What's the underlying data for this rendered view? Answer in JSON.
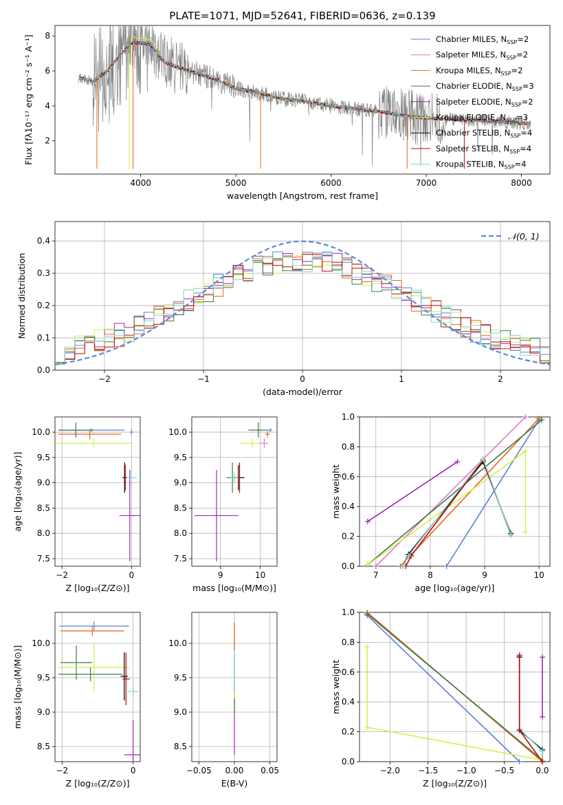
{
  "figure": {
    "title": "PLATE=1071, MJD=52641, FIBERID=0636, z=0.139"
  },
  "colors": {
    "chabrier_miles": "#5b7fd6",
    "salpeter_miles": "#e377c2",
    "kroupa_miles": "#e8641b",
    "chabrier_elodie": "#3c7a45",
    "salpeter_elodie": "#9b27b0",
    "kroupa_elodie": "#d4ef4a",
    "chabrier_stelib": "#000000",
    "salpeter_stelib": "#c00000",
    "kroupa_stelib": "#7fd6d6",
    "data": "#7f7f7f",
    "gaussian": "#5b87d6"
  },
  "chart_data": [
    {
      "id": "spectrum",
      "type": "line",
      "xlabel": "wavelength [Angstrom, rest frame]",
      "ylabel": "Flux [fλ10⁻¹⁷ erg cm⁻² s⁻¹ A⁻¹]",
      "xlim": [
        3100,
        8300
      ],
      "ylim": [
        0.1,
        8.6
      ],
      "xticks": [
        4000,
        5000,
        6000,
        7000,
        8000
      ],
      "yticks": [
        2,
        4,
        6,
        8
      ],
      "legend_position": "top-right",
      "legend": [
        "Chabrier MILES, N_SSP=2",
        "Salpeter MILES, N_SSP=2",
        "Kroupa MILES, N_SSP=2",
        "Chabrier ELODIE, N_SSP=3",
        "Salpeter ELODIE, N_SSP=2",
        "Kroupa ELODIE, N_SSP=3",
        "Chabrier STELIB, N_SSP=4",
        "Salpeter STELIB, N_SSP=4",
        "Kroupa STELIB, N_SSP=4"
      ],
      "continuum": {
        "x": [
          3350,
          3500,
          3650,
          3800,
          3900,
          4000,
          4100,
          4250,
          4500,
          4800,
          5000,
          5200,
          5500,
          5800,
          6000,
          6300,
          6600,
          6800,
          7000,
          7400,
          7800,
          8000,
          8100
        ],
        "y": [
          5.6,
          5.4,
          6.0,
          7.0,
          7.6,
          7.6,
          7.5,
          6.5,
          6.0,
          5.5,
          5.0,
          4.8,
          4.4,
          4.2,
          4.0,
          3.8,
          3.6,
          3.4,
          3.3,
          3.2,
          3.1,
          3.0,
          3.0
        ]
      }
    },
    {
      "id": "residuals",
      "type": "area",
      "xlabel": "(data-model)/error",
      "ylabel": "Normed distribution",
      "xlim": [
        -2.5,
        2.5
      ],
      "ylim": [
        0,
        0.46
      ],
      "xticks": [
        -2,
        -1,
        0,
        1,
        2
      ],
      "yticks": [
        0.0,
        0.1,
        0.2,
        0.3,
        0.4
      ],
      "legend": [
        "𝒩(0, 1)"
      ],
      "legend_position": "top-right",
      "bin_width": 0.1
    },
    {
      "id": "age-vs-z",
      "type": "scatter",
      "xlabel": "Z [log₁₀(Z/Z⊙)]",
      "ylabel": "age  [log₁₀(age/yr)]",
      "xlim": [
        -2.2,
        0.25
      ],
      "ylim": [
        7.35,
        10.3
      ],
      "xticks": [
        -2,
        0
      ],
      "yticks": [
        7.5,
        8.0,
        8.5,
        9.0,
        9.5,
        10.0
      ],
      "points": [
        {
          "s": "chabrier_miles",
          "x": -1.15,
          "y": 10.04,
          "xerr": 0.95,
          "yerr": 0.04
        },
        {
          "s": "kroupa_miles",
          "x": -1.2,
          "y": 9.96,
          "xerr": 0.9,
          "yerr": 0.1
        },
        {
          "s": "chabrier_elodie",
          "x": -1.6,
          "y": 10.04,
          "xerr": 0.5,
          "yerr": 0.15
        },
        {
          "s": "kroupa_elodie",
          "x": -1.1,
          "y": 9.78,
          "xerr": 1.1,
          "yerr": 0.08
        },
        {
          "s": "salpeter_elodie",
          "x": -0.05,
          "y": 8.35,
          "xerr": 0.3,
          "yerr": 0.9
        },
        {
          "s": "chabrier_stelib",
          "x": -0.2,
          "y": 9.1,
          "xerr": 0.06,
          "yerr": 0.3
        },
        {
          "s": "salpeter_stelib",
          "x": -0.18,
          "y": 9.1,
          "xerr": 0.06,
          "yerr": 0.25
        },
        {
          "s": "kroupa_stelib",
          "x": 0.0,
          "y": 9.1,
          "xerr": 0.15,
          "yerr": 0.15
        },
        {
          "s": "chabrier_miles",
          "x": 0.0,
          "y": 10.0,
          "xerr": 0.05,
          "yerr": 0.05
        }
      ]
    },
    {
      "id": "age-vs-mass",
      "type": "scatter",
      "xlabel": "mass [log₁₀(M/M⊙)]",
      "ylabel": "",
      "xlim": [
        8.28,
        10.42
      ],
      "ylim": [
        7.35,
        10.3
      ],
      "xticks": [
        9,
        10
      ],
      "yticks": [
        7.5,
        8.0,
        8.5,
        9.0,
        9.5,
        10.0
      ],
      "points": [
        {
          "s": "salpeter_elodie",
          "x": 8.9,
          "y": 8.35,
          "xerr": 0.55,
          "yerr": 0.9
        },
        {
          "s": "chabrier_elodie",
          "x": 9.3,
          "y": 9.1,
          "xerr": 0.15,
          "yerr": 0.3
        },
        {
          "s": "chabrier_stelib",
          "x": 9.45,
          "y": 9.1,
          "xerr": 0.15,
          "yerr": 0.25
        },
        {
          "s": "salpeter_stelib",
          "x": 9.48,
          "y": 9.1,
          "xerr": 0.05,
          "yerr": 0.3
        },
        {
          "s": "kroupa_stelib",
          "x": 9.35,
          "y": 9.1,
          "xerr": 0.1,
          "yerr": 0.1
        },
        {
          "s": "chabrier_elodie",
          "x": 9.95,
          "y": 10.04,
          "xerr": 0.25,
          "yerr": 0.15
        },
        {
          "s": "kroupa_elodie",
          "x": 9.8,
          "y": 9.78,
          "xerr": 0.3,
          "yerr": 0.1
        },
        {
          "s": "chabrier_miles",
          "x": 10.25,
          "y": 10.04,
          "xerr": 0.05,
          "yerr": 0.04
        },
        {
          "s": "salpeter_miles",
          "x": 10.1,
          "y": 9.78,
          "xerr": 0.1,
          "yerr": 0.1
        },
        {
          "s": "kroupa_miles",
          "x": 10.18,
          "y": 9.96,
          "xerr": 0.06,
          "yerr": 0.06
        }
      ]
    },
    {
      "id": "weight-vs-age",
      "type": "line",
      "xlabel": "age  [log₁₀(age/yr)]",
      "ylabel": "mass weight",
      "xlim": [
        6.7,
        10.2
      ],
      "ylim": [
        0,
        1.0
      ],
      "xticks": [
        7,
        8,
        9,
        10
      ],
      "yticks": [
        0.0,
        0.2,
        0.4,
        0.6,
        0.8,
        1.0
      ],
      "grid": true,
      "series": [
        {
          "s": "chabrier_miles",
          "x": [
            8.3,
            10.0
          ],
          "y": [
            0.0,
            0.98
          ]
        },
        {
          "s": "salpeter_miles",
          "x": [
            7.0,
            9.75
          ],
          "y": [
            0.0,
            1.0
          ]
        },
        {
          "s": "kroupa_miles",
          "x": [
            7.45,
            10.0
          ],
          "y": [
            0.0,
            0.99
          ]
        },
        {
          "s": "chabrier_elodie",
          "x": [
            6.85,
            10.05
          ],
          "y": [
            0.01,
            0.98
          ]
        },
        {
          "s": "salpeter_elodie",
          "x": [
            6.85,
            8.5
          ],
          "y": [
            0.3,
            0.7
          ]
        },
        {
          "s": "kroupa_elodie",
          "x": [
            6.85,
            9.75,
            9.75
          ],
          "y": [
            0.01,
            0.77,
            0.23
          ]
        },
        {
          "s": "chabrier_stelib",
          "x": [
            7.5,
            7.6,
            8.97,
            9.48
          ],
          "y": [
            0.0,
            0.08,
            0.7,
            0.22
          ]
        },
        {
          "s": "salpeter_stelib",
          "x": [
            7.55,
            7.65,
            8.97,
            9.48
          ],
          "y": [
            0.0,
            0.07,
            0.71,
            0.21
          ]
        },
        {
          "s": "kroupa_stelib",
          "x": [
            7.5,
            7.6,
            8.97,
            9.48
          ],
          "y": [
            0.0,
            0.07,
            0.72,
            0.21
          ]
        }
      ]
    },
    {
      "id": "mass-vs-z",
      "type": "scatter",
      "xlabel": "Z [log₁₀(Z/Z⊙)]",
      "ylabel": "mass [log₁₀(M/M⊙)]",
      "xlim": [
        -2.2,
        0.2
      ],
      "ylim": [
        8.28,
        10.45
      ],
      "xticks": [
        -2,
        0
      ],
      "yticks": [
        8.5,
        9.0,
        9.5,
        10.0
      ],
      "points": [
        {
          "s": "chabrier_miles",
          "x": -1.1,
          "y": 10.25,
          "xerr": 0.98,
          "yerr": 0.07
        },
        {
          "s": "kroupa_miles",
          "x": -1.15,
          "y": 10.18,
          "xerr": 0.9,
          "yerr": 0.07
        },
        {
          "s": "chabrier_elodie",
          "x": -1.6,
          "y": 9.72,
          "xerr": 0.45,
          "yerr": 0.25
        },
        {
          "s": "kroupa_elodie",
          "x": -1.1,
          "y": 9.65,
          "xerr": 1.0,
          "yerr": 0.35
        },
        {
          "s": "chabrier_elodie",
          "x": -1.2,
          "y": 9.55,
          "xerr": 0.9,
          "yerr": 0.1
        },
        {
          "s": "salpeter_elodie",
          "x": 0.0,
          "y": 8.38,
          "xerr": 0.25,
          "yerr": 0.5
        },
        {
          "s": "chabrier_stelib",
          "x": -0.25,
          "y": 9.52,
          "xerr": 0.1,
          "yerr": 0.35
        },
        {
          "s": "salpeter_stelib",
          "x": -0.2,
          "y": 9.48,
          "xerr": 0.1,
          "yerr": 0.38
        },
        {
          "s": "kroupa_stelib",
          "x": 0.0,
          "y": 9.3,
          "xerr": 0.15,
          "yerr": 0.1
        }
      ]
    },
    {
      "id": "mass-vs-ebv",
      "type": "scatter",
      "xlabel": "E(B-V)",
      "ylabel": "",
      "xlim": [
        -0.06,
        0.06
      ],
      "ylim": [
        8.28,
        10.45
      ],
      "xticks": [
        -0.05,
        0.0,
        0.05
      ],
      "yticks": [
        8.5,
        9.0,
        9.5,
        10.0
      ],
      "points": [
        {
          "s": "salpeter_elodie",
          "x": 0.0,
          "y": 8.9,
          "xerr": 0.0,
          "yerr": 0.52
        },
        {
          "s": "chabrier_miles",
          "x": 0.0,
          "y": 10.1,
          "xerr": 0.0,
          "yerr": 0.2
        },
        {
          "s": "kroupa_miles",
          "x": 0.0,
          "y": 9.9,
          "xerr": 0.0,
          "yerr": 0.4
        },
        {
          "s": "chabrier_elodie",
          "x": 0.0,
          "y": 9.4,
          "xerr": 0.0,
          "yerr": 0.4
        },
        {
          "s": "kroupa_elodie",
          "x": 0.0,
          "y": 9.5,
          "xerr": 0.0,
          "yerr": 0.3
        },
        {
          "s": "kroupa_stelib",
          "x": 0.0,
          "y": 9.6,
          "xerr": 0.0,
          "yerr": 0.3
        }
      ]
    },
    {
      "id": "weight-vs-z",
      "type": "line",
      "xlabel": "Z [log₁₀(Z/Z⊙)]",
      "ylabel": "mass weight",
      "xlim": [
        -2.4,
        0.1
      ],
      "ylim": [
        0,
        1.0
      ],
      "xticks": [
        -2.0,
        -1.5,
        -1.0,
        -0.5,
        0.0
      ],
      "yticks": [
        0.0,
        0.2,
        0.4,
        0.6,
        0.8,
        1.0
      ],
      "grid": true,
      "series": [
        {
          "s": "chabrier_miles",
          "x": [
            -2.3,
            -0.3
          ],
          "y": [
            0.98,
            0.0
          ]
        },
        {
          "s": "kroupa_miles",
          "x": [
            -2.3,
            0.0
          ],
          "y": [
            1.0,
            0.0
          ]
        },
        {
          "s": "chabrier_elodie",
          "x": [
            -2.3,
            0.0
          ],
          "y": [
            0.99,
            0.01
          ]
        },
        {
          "s": "kroupa_elodie",
          "x": [
            -2.3,
            -2.3,
            0.0
          ],
          "y": [
            0.77,
            0.23,
            0.01
          ]
        },
        {
          "s": "salpeter_elodie",
          "x": [
            0.0,
            0.0
          ],
          "y": [
            0.3,
            0.7
          ]
        },
        {
          "s": "chabrier_stelib",
          "x": [
            -0.3,
            -0.3,
            0.0,
            0.0
          ],
          "y": [
            0.7,
            0.21,
            0.08,
            0.0
          ]
        },
        {
          "s": "kroupa_stelib",
          "x": [
            -0.3,
            -0.3,
            0.0,
            0.0
          ],
          "y": [
            0.72,
            0.22,
            0.07,
            0.0
          ]
        },
        {
          "s": "salpeter_stelib",
          "x": [
            -0.3,
            -0.3,
            0.0
          ],
          "y": [
            0.71,
            0.21,
            0.0
          ]
        }
      ]
    }
  ],
  "histogram_series": [
    {
      "s": "chabrier_miles",
      "amp": 0.32,
      "sigma": 1.15,
      "seed": 3
    },
    {
      "s": "salpeter_elodie",
      "amp": 0.33,
      "sigma": 1.15,
      "seed": 7
    },
    {
      "s": "kroupa_elodie",
      "amp": 0.32,
      "sigma": 1.18,
      "seed": 11
    },
    {
      "s": "chabrier_elodie",
      "amp": 0.31,
      "sigma": 1.2,
      "seed": 17
    },
    {
      "s": "kroupa_miles",
      "amp": 0.32,
      "sigma": 1.15,
      "seed": 23
    },
    {
      "s": "salpeter_stelib",
      "amp": 0.32,
      "sigma": 1.15,
      "seed": 29
    },
    {
      "s": "kroupa_stelib",
      "amp": 0.32,
      "sigma": 1.15,
      "seed": 31
    }
  ]
}
